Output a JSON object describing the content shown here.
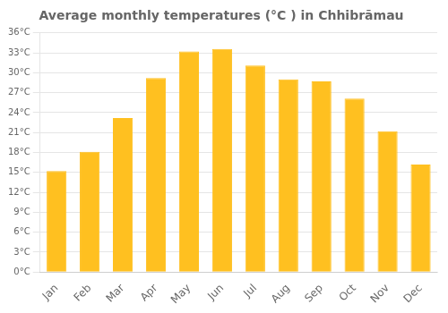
{
  "chart_data": {
    "type": "bar",
    "title": "Average monthly temperatures (°C ) in Chhibrāmau",
    "categories": [
      "Jan",
      "Feb",
      "Mar",
      "Apr",
      "May",
      "Jun",
      "Jul",
      "Aug",
      "Sep",
      "Oct",
      "Nov",
      "Dec"
    ],
    "values": [
      15.2,
      18.1,
      23.2,
      29.2,
      33.2,
      33.6,
      31.1,
      29.0,
      28.7,
      26.1,
      21.2,
      16.2
    ],
    "color": "#FFC020",
    "ylim": [
      0,
      36
    ],
    "yticks": [
      {
        "value": 0,
        "label": "0°C"
      },
      {
        "value": 3,
        "label": "3°C"
      },
      {
        "value": 6,
        "label": "6°C"
      },
      {
        "value": 9,
        "label": "9°C"
      },
      {
        "value": 12,
        "label": "12°C"
      },
      {
        "value": 15,
        "label": "15°C"
      },
      {
        "value": 18,
        "label": "18°C"
      },
      {
        "value": 21,
        "label": "21°C"
      },
      {
        "value": 24,
        "label": "24°C"
      },
      {
        "value": 27,
        "label": "27°C"
      },
      {
        "value": 30,
        "label": "30°C"
      },
      {
        "value": 33,
        "label": "33°C"
      },
      {
        "value": 36,
        "label": "36°C"
      }
    ],
    "grid": true
  }
}
